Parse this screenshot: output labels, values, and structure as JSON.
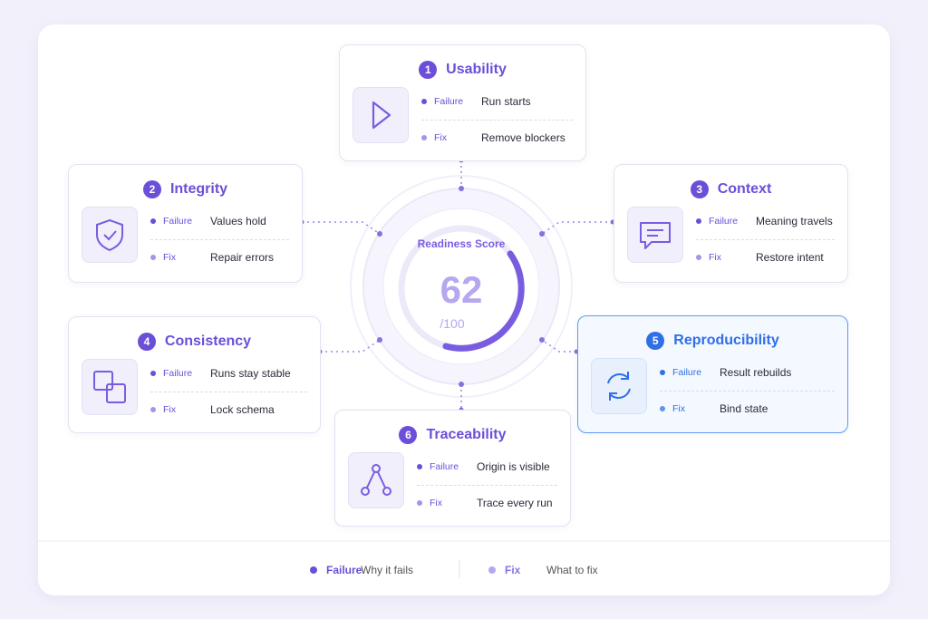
{
  "score": {
    "title": "Readiness Score",
    "value": "62",
    "max_label": "/100"
  },
  "cards": [
    {
      "number": "1",
      "title": "Usability",
      "failure_label": "Failure",
      "failure": "Run starts",
      "fix_label": "Fix",
      "fix": "Remove blockers"
    },
    {
      "number": "2",
      "title": "Integrity",
      "failure_label": "Failure",
      "failure": "Values hold",
      "fix_label": "Fix",
      "fix": "Repair errors"
    },
    {
      "number": "3",
      "title": "Context",
      "failure_label": "Failure",
      "failure": "Meaning travels",
      "fix_label": "Fix",
      "fix": "Restore intent"
    },
    {
      "number": "4",
      "title": "Consistency",
      "failure_label": "Failure",
      "failure": "Runs stay stable",
      "fix_label": "Fix",
      "fix": "Lock schema"
    },
    {
      "number": "5",
      "title": "Reproducibility",
      "failure_label": "Failure",
      "failure": "Result rebuilds",
      "fix_label": "Fix",
      "fix": "Bind state"
    },
    {
      "number": "6",
      "title": "Traceability",
      "failure_label": "Failure",
      "failure": "Origin is visible",
      "fix_label": "Fix",
      "fix": "Trace every run"
    }
  ],
  "legend": [
    {
      "label": "Failure",
      "description": "Why it fails"
    },
    {
      "label": "Fix",
      "description": "What to fix"
    }
  ]
}
